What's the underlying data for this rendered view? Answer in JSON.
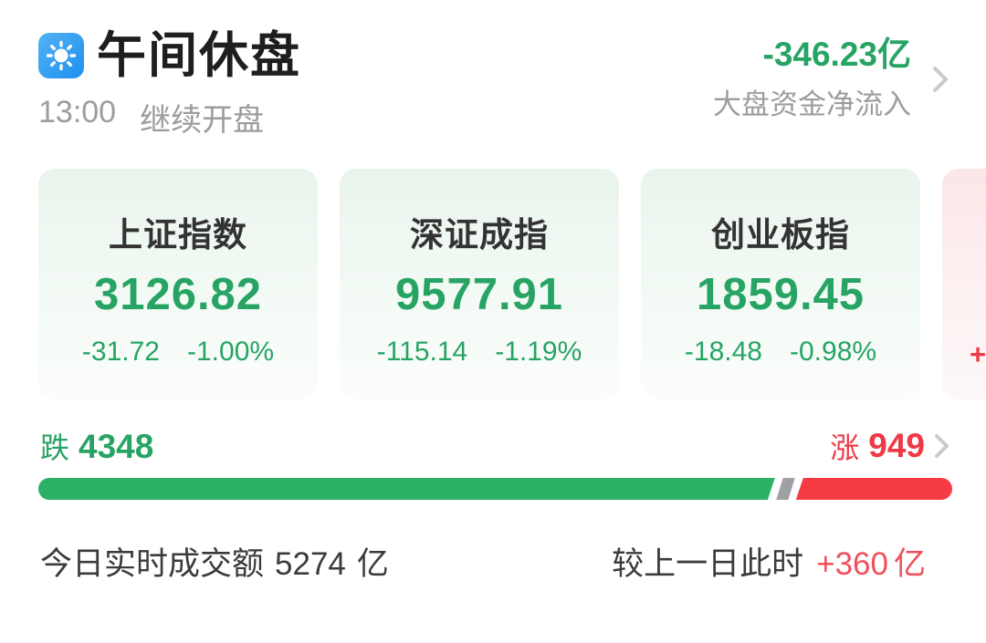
{
  "header": {
    "title": "午间休盘",
    "time": "13:00",
    "status": "继续开盘",
    "net_inflow_value": "-346.23亿",
    "net_inflow_label": "大盘资金净流入"
  },
  "index_cards": [
    {
      "name": "上证指数",
      "value": "3126.82",
      "change": "-31.72",
      "change_pct": "-1.00%",
      "trend": "down"
    },
    {
      "name": "深证成指",
      "value": "9577.91",
      "change": "-115.14",
      "change_pct": "-1.19%",
      "trend": "down"
    },
    {
      "name": "创业板指",
      "value": "1859.45",
      "change": "-18.48",
      "change_pct": "-0.98%",
      "trend": "down"
    }
  ],
  "partial_card": {
    "visible_text": "+",
    "trend": "up"
  },
  "market_breadth": {
    "fall_label": "跌",
    "fall_count": "4348",
    "rise_label": "涨",
    "rise_count": "949",
    "bar_segments": {
      "fall_pct": 80.6,
      "flat_pct": 1.3,
      "rise_pct": 18.1
    }
  },
  "footer": {
    "turnover_label": "今日实时成交额",
    "turnover_value": "5274",
    "turnover_unit": "亿",
    "compare_label": "较上一日此时",
    "compare_value": "+360",
    "compare_unit": "亿"
  },
  "colors": {
    "down_green": "#27a464",
    "up_red": "#ee3a46",
    "bar_green": "#2cb167",
    "bar_red": "#f73b45",
    "bar_flat_gray": "#9fa0a4",
    "icon_blue": "#1e90ee",
    "muted_gray": "#9c9ca1"
  }
}
